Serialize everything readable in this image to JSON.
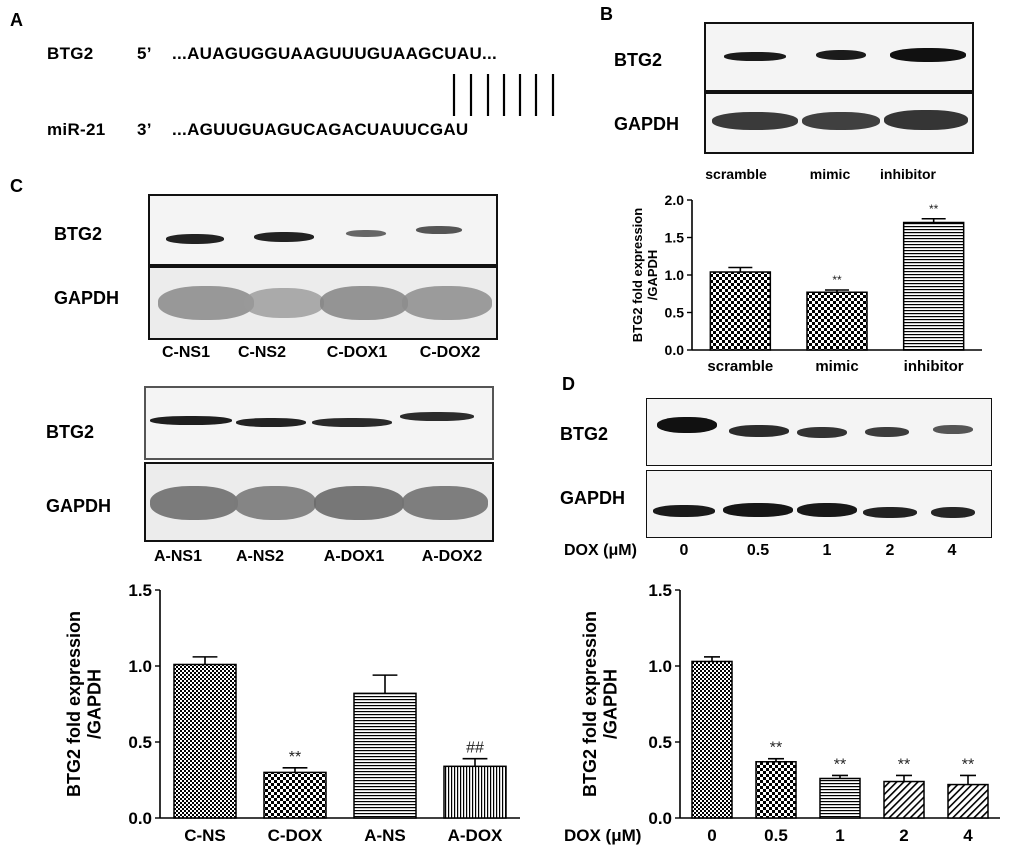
{
  "panel_a": {
    "letter": "A",
    "btg2_label": "BTG2",
    "btg2_end": "5’",
    "btg2_seq": "...AUAGUGGUAAGUUUGUAAGCUAU...",
    "mir_label": "miR-21",
    "mir_end": "3’",
    "mir_seq": "...AGUUGUAGUCAGACUAUUCGAU"
  },
  "panel_b": {
    "letter": "B",
    "blot_labels": [
      "BTG2",
      "GAPDH"
    ],
    "lane_labels": [
      "scramble",
      "mimic",
      "inhibitor"
    ]
  },
  "panel_c": {
    "letter": "C",
    "blot1_labels": [
      "BTG2",
      "GAPDH"
    ],
    "blot1_lanes": [
      "C-NS1",
      "C-NS2",
      "C-DOX1",
      "C-DOX2"
    ],
    "blot2_labels": [
      "BTG2",
      "GAPDH"
    ],
    "blot2_lanes": [
      "A-NS1",
      "A-NS2",
      "A-DOX1",
      "A-DOX2"
    ]
  },
  "panel_d": {
    "letter": "D",
    "blot_labels": [
      "BTG2",
      "GAPDH"
    ],
    "dox_label": "DOX (μM)",
    "dose_labels": [
      "0",
      "0.5",
      "1",
      "2",
      "4"
    ]
  },
  "chart_data": [
    {
      "id": "chart-b",
      "type": "bar",
      "categories": [
        "scramble",
        "mimic",
        "inhibitor"
      ],
      "values": [
        1.04,
        0.77,
        1.7
      ],
      "errors": [
        0.06,
        0.03,
        0.05
      ],
      "annotations": [
        "",
        "**",
        "**"
      ],
      "patterns": [
        "checker",
        "checker",
        "hlines"
      ],
      "ylabel": "BTG2 fold expression\n/GAPDH",
      "xlabel": "",
      "ylim": [
        0,
        2.0
      ],
      "yticks": [
        "0.0",
        "0.5",
        "1.0",
        "1.5",
        "2.0"
      ]
    },
    {
      "id": "chart-c",
      "type": "bar",
      "categories": [
        "C-NS",
        "C-DOX",
        "A-NS",
        "A-DOX"
      ],
      "values": [
        1.01,
        0.3,
        0.82,
        0.34
      ],
      "errors": [
        0.05,
        0.03,
        0.12,
        0.05
      ],
      "annotations": [
        "",
        "**",
        "",
        "##"
      ],
      "patterns": [
        "checker-small",
        "checker",
        "hlines",
        "vlines"
      ],
      "ylabel": "BTG2 fold expression\n/GAPDH",
      "xlabel": "",
      "ylim": [
        0,
        1.5
      ],
      "yticks": [
        "0.0",
        "0.5",
        "1.0",
        "1.5"
      ]
    },
    {
      "id": "chart-d",
      "type": "bar",
      "categories": [
        "0",
        "0.5",
        "1",
        "2",
        "4"
      ],
      "values": [
        1.03,
        0.37,
        0.26,
        0.24,
        0.22
      ],
      "errors": [
        0.03,
        0.02,
        0.02,
        0.04,
        0.06
      ],
      "annotations": [
        "",
        "**",
        "**",
        "**",
        "**"
      ],
      "patterns": [
        "checker-small",
        "checker",
        "hlines",
        "diag",
        "diag"
      ],
      "ylabel": "BTG2 fold expression\n/GAPDH",
      "xlabel": "DOX (μM)",
      "ylim": [
        0,
        1.5
      ],
      "yticks": [
        "0.0",
        "0.5",
        "1.0",
        "1.5"
      ]
    }
  ]
}
